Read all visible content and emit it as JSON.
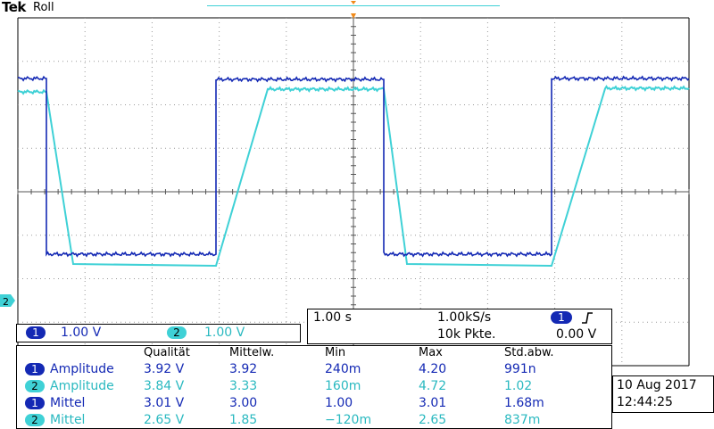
{
  "header": {
    "brand": "Tek",
    "mode": "Roll"
  },
  "colors": {
    "ch1": "#1429b4",
    "ch2": "#3fd1d6",
    "grid": "#9a9a9a",
    "trigger_marker": "#f08a1a"
  },
  "icons": {
    "trigger_position": "trigger-position-marker",
    "ch2_ground": "ch2-ground-marker",
    "rising_edge": "rising-edge-icon"
  },
  "ch2_ground_label": "2",
  "channels": [
    {
      "num": "1",
      "scale": "1.00 V"
    },
    {
      "num": "2",
      "scale": "1.00 V"
    }
  ],
  "timebase": {
    "time_div": "1.00 s",
    "sample_rate": "1.00kS/s",
    "record_length": "10k Pkte.",
    "trigger_channel": "1",
    "trigger_level": "0.00 V"
  },
  "measurements": {
    "headers": [
      "Qualität",
      "Mittelw.",
      "Min",
      "Max",
      "Std.abw."
    ],
    "rows": [
      {
        "ch": "1",
        "name": "Amplitude",
        "value": "3.92 V",
        "mean": "3.92",
        "min": "240m",
        "max": "4.20",
        "std": "991n"
      },
      {
        "ch": "2",
        "name": "Amplitude",
        "value": "3.84 V",
        "mean": "3.33",
        "min": "160m",
        "max": "4.72",
        "std": "1.02"
      },
      {
        "ch": "1",
        "name": "Mittel",
        "value": "3.01 V",
        "mean": "3.00",
        "min": "1.00",
        "max": "3.01",
        "std": "1.68m"
      },
      {
        "ch": "2",
        "name": "Mittel",
        "value": "2.65 V",
        "mean": "1.85",
        "min": "−120m",
        "max": "2.65",
        "std": "837m"
      }
    ]
  },
  "datetime": {
    "date": "10 Aug 2017",
    "time": "12:44:25"
  }
}
